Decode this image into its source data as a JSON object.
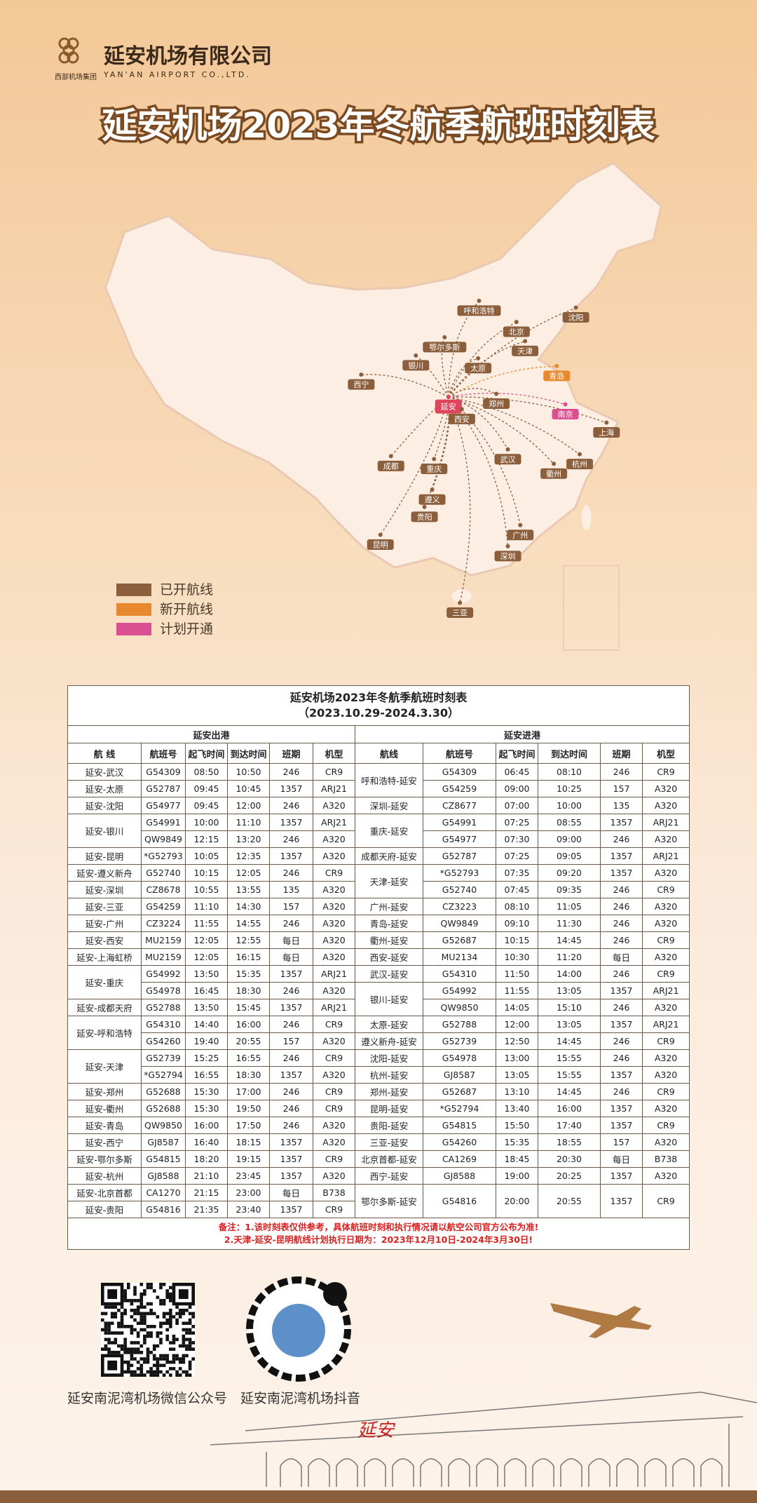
{
  "header": {
    "company": "延安机场有限公司",
    "company_en": "YAN'AN AIRPORT CO.,LTD.",
    "group": "西部机场集团",
    "title": "延安机场2023年冬航季航班时刻表"
  },
  "map": {
    "cities": [
      "呼和浩特",
      "沈阳",
      "北京",
      "鄂尔多斯",
      "天津",
      "银川",
      "太原",
      "青岛",
      "西宁",
      "延安",
      "郑州",
      "南京",
      "西安",
      "上海",
      "武汉",
      "成都",
      "重庆",
      "杭州",
      "衢州",
      "遵义",
      "贵阳",
      "广州",
      "昆明",
      "深圳",
      "三亚"
    ],
    "legend": [
      "已开航线",
      "新开航线",
      "计划开通"
    ]
  },
  "table": {
    "title": "延安机场2023年冬航季航班时刻表",
    "period": "（2023.10.29-2024.3.30）",
    "departures": {
      "title": "延安出港",
      "columns": [
        "航  线",
        "航班号",
        "起飞时间",
        "到达时间",
        "班期",
        "机型"
      ],
      "groups": [
        {
          "route": "延安-武汉",
          "flights": [
            [
              "G54309",
              "08:50",
              "10:50",
              "246",
              "CR9"
            ]
          ]
        },
        {
          "route": "延安-太原",
          "flights": [
            [
              "G52787",
              "09:45",
              "10:45",
              "1357",
              "ARJ21"
            ]
          ]
        },
        {
          "route": "延安-沈阳",
          "flights": [
            [
              "G54977",
              "09:45",
              "12:00",
              "246",
              "A320"
            ]
          ]
        },
        {
          "route": "延安-银川",
          "flights": [
            [
              "G54991",
              "10:00",
              "11:10",
              "1357",
              "ARJ21"
            ],
            [
              "QW9849",
              "12:15",
              "13:20",
              "246",
              "A320"
            ]
          ]
        },
        {
          "route": "延安-昆明",
          "flights": [
            [
              "*G52793",
              "10:05",
              "12:35",
              "1357",
              "A320"
            ]
          ]
        },
        {
          "route": "延安-遵义新舟",
          "flights": [
            [
              "G52740",
              "10:15",
              "12:05",
              "246",
              "CR9"
            ]
          ]
        },
        {
          "route": "延安-深圳",
          "flights": [
            [
              "CZ8678",
              "10:55",
              "13:55",
              "135",
              "A320"
            ]
          ]
        },
        {
          "route": "延安-三亚",
          "flights": [
            [
              "G54259",
              "11:10",
              "14:30",
              "157",
              "A320"
            ]
          ]
        },
        {
          "route": "延安-广州",
          "flights": [
            [
              "CZ3224",
              "11:55",
              "14:55",
              "246",
              "A320"
            ]
          ]
        },
        {
          "route": "延安-西安",
          "flights": [
            [
              "MU2159",
              "12:05",
              "12:55",
              "每日",
              "A320"
            ]
          ]
        },
        {
          "route": "延安-上海虹桥",
          "flights": [
            [
              "MU2159",
              "12:05",
              "16:15",
              "每日",
              "A320"
            ]
          ]
        },
        {
          "route": "延安-重庆",
          "flights": [
            [
              "G54992",
              "13:50",
              "15:35",
              "1357",
              "ARJ21"
            ],
            [
              "G54978",
              "16:45",
              "18:30",
              "246",
              "A320"
            ]
          ]
        },
        {
          "route": "延安-成都天府",
          "flights": [
            [
              "G52788",
              "13:50",
              "15:45",
              "1357",
              "ARJ21"
            ]
          ]
        },
        {
          "route": "延安-呼和浩特",
          "flights": [
            [
              "G54310",
              "14:40",
              "16:00",
              "246",
              "CR9"
            ],
            [
              "G54260",
              "19:40",
              "20:55",
              "157",
              "A320"
            ]
          ]
        },
        {
          "route": "延安-天津",
          "flights": [
            [
              "G52739",
              "15:25",
              "16:55",
              "246",
              "CR9"
            ],
            [
              "*G52794",
              "16:55",
              "18:30",
              "1357",
              "A320"
            ]
          ]
        },
        {
          "route": "延安-郑州",
          "flights": [
            [
              "G52688",
              "15:30",
              "17:00",
              "246",
              "CR9"
            ]
          ]
        },
        {
          "route": "延安-衢州",
          "flights": [
            [
              "G52688",
              "15:30",
              "19:50",
              "246",
              "CR9"
            ]
          ]
        },
        {
          "route": "延安-青岛",
          "flights": [
            [
              "QW9850",
              "16:00",
              "17:50",
              "246",
              "A320"
            ]
          ]
        },
        {
          "route": "延安-西宁",
          "flights": [
            [
              "GJ8587",
              "16:40",
              "18:15",
              "1357",
              "A320"
            ]
          ]
        },
        {
          "route": "延安-鄂尔多斯",
          "flights": [
            [
              "G54815",
              "18:20",
              "19:15",
              "1357",
              "CR9"
            ]
          ]
        },
        {
          "route": "延安-杭州",
          "flights": [
            [
              "GJ8588",
              "21:10",
              "23:45",
              "1357",
              "A320"
            ]
          ]
        },
        {
          "route": "延安-北京首都",
          "flights": [
            [
              "CA1270",
              "21:15",
              "23:00",
              "每日",
              "B738"
            ]
          ]
        },
        {
          "route": "延安-贵阳",
          "flights": [
            [
              "G54816",
              "21:35",
              "23:40",
              "1357",
              "CR9"
            ]
          ]
        }
      ]
    },
    "arrivals": {
      "title": "延安进港",
      "columns": [
        "航线",
        "航班号",
        "起飞时间",
        "到达时间",
        "班期",
        "机型"
      ],
      "groups": [
        {
          "route": "呼和浩特-延安",
          "flights": [
            [
              "G54309",
              "06:45",
              "08:10",
              "246",
              "CR9"
            ],
            [
              "G54259",
              "09:00",
              "10:25",
              "157",
              "A320"
            ]
          ]
        },
        {
          "route": "深圳-延安",
          "flights": [
            [
              "CZ8677",
              "07:00",
              "10:00",
              "135",
              "A320"
            ]
          ]
        },
        {
          "route": "重庆-延安",
          "flights": [
            [
              "G54991",
              "07:25",
              "08:55",
              "1357",
              "ARJ21"
            ],
            [
              "G54977",
              "07:30",
              "09:00",
              "246",
              "A320"
            ]
          ]
        },
        {
          "route": "成都天府-延安",
          "flights": [
            [
              "G52787",
              "07:25",
              "09:05",
              "1357",
              "ARJ21"
            ]
          ]
        },
        {
          "route": "天津-延安",
          "flights": [
            [
              "*G52793",
              "07:35",
              "09:20",
              "1357",
              "A320"
            ],
            [
              "G52740",
              "07:45",
              "09:35",
              "246",
              "CR9"
            ]
          ]
        },
        {
          "route": "广州-延安",
          "flights": [
            [
              "CZ3223",
              "08:10",
              "11:05",
              "246",
              "A320"
            ]
          ]
        },
        {
          "route": "青岛-延安",
          "flights": [
            [
              "QW9849",
              "09:10",
              "11:30",
              "246",
              "A320"
            ]
          ]
        },
        {
          "route": "衢州-延安",
          "flights": [
            [
              "G52687",
              "10:15",
              "14:45",
              "246",
              "CR9"
            ]
          ]
        },
        {
          "route": "西安-延安",
          "flights": [
            [
              "MU2134",
              "10:30",
              "11:20",
              "每日",
              "A320"
            ]
          ]
        },
        {
          "route": "武汉-延安",
          "flights": [
            [
              "G54310",
              "11:50",
              "14:00",
              "246",
              "CR9"
            ]
          ]
        },
        {
          "route": "银川-延安",
          "flights": [
            [
              "G54992",
              "11:55",
              "13:05",
              "1357",
              "ARJ21"
            ],
            [
              "QW9850",
              "14:05",
              "15:10",
              "246",
              "A320"
            ]
          ]
        },
        {
          "route": "太原-延安",
          "flights": [
            [
              "G52788",
              "12:00",
              "13:05",
              "1357",
              "ARJ21"
            ]
          ]
        },
        {
          "route": "遵义新舟-延安",
          "flights": [
            [
              "G52739",
              "12:50",
              "14:45",
              "246",
              "CR9"
            ]
          ]
        },
        {
          "route": "沈阳-延安",
          "flights": [
            [
              "G54978",
              "13:00",
              "15:55",
              "246",
              "A320"
            ]
          ]
        },
        {
          "route": "杭州-延安",
          "flights": [
            [
              "GJ8587",
              "13:05",
              "15:55",
              "1357",
              "A320"
            ]
          ]
        },
        {
          "route": "郑州-延安",
          "flights": [
            [
              "G52687",
              "13:10",
              "14:45",
              "246",
              "CR9"
            ]
          ]
        },
        {
          "route": "昆明-延安",
          "flights": [
            [
              "*G52794",
              "13:40",
              "16:00",
              "1357",
              "A320"
            ]
          ]
        },
        {
          "route": "贵阳-延安",
          "flights": [
            [
              "G54815",
              "15:50",
              "17:40",
              "1357",
              "CR9"
            ]
          ]
        },
        {
          "route": "三亚-延安",
          "flights": [
            [
              "G54260",
              "15:35",
              "18:55",
              "157",
              "A320"
            ]
          ]
        },
        {
          "route": "北京首都-延安",
          "flights": [
            [
              "CA1269",
              "18:45",
              "20:30",
              "每日",
              "B738"
            ]
          ]
        },
        {
          "route": "西宁-延安",
          "flights": [
            [
              "GJ8588",
              "19:00",
              "20:25",
              "1357",
              "A320"
            ]
          ]
        },
        {
          "route": "鄂尔多斯-延安",
          "flights": [
            [
              "G54816",
              "20:00",
              "20:55",
              "1357",
              "CR9"
            ]
          ]
        }
      ]
    },
    "notes_label": "备注：",
    "notes": [
      "1.该时刻表仅供参考，具体航班时刻和执行情况请以航空公司官方公布为准!",
      "2.天津-延安-昆明航线计划执行日期为：2023年12月10日-2024年3月30日!"
    ]
  },
  "footer": {
    "qr_captions": [
      "延安南泥湾机场微信公众号",
      "延安南泥湾机场抖音"
    ],
    "sign": "延安"
  }
}
